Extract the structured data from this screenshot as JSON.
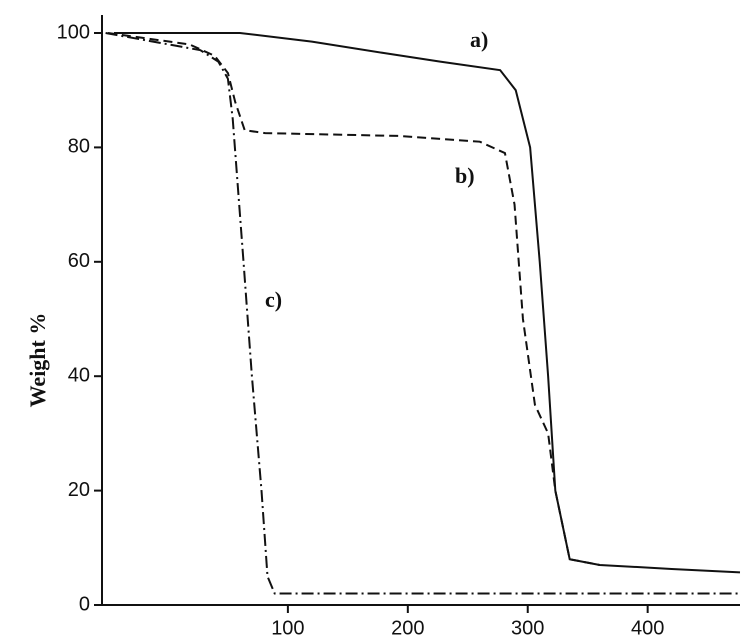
{
  "chart_data": {
    "type": "line",
    "ylabel": "Weight %",
    "xlim": [
      -55,
      477
    ],
    "ylim": [
      0,
      100
    ],
    "xticks": [
      100,
      200,
      300,
      400
    ],
    "yticks": [
      0,
      20,
      40,
      60,
      80,
      100
    ],
    "series": [
      {
        "name": "a)",
        "color": "#111111",
        "style": "solid",
        "x": [
          -45,
          0,
          60,
          120,
          180,
          227,
          277,
          290,
          302,
          310,
          317,
          323,
          335,
          360,
          420,
          477
        ],
        "values": [
          100,
          100,
          100,
          98.5,
          96.5,
          95,
          93.5,
          90,
          80,
          60,
          40,
          20,
          8,
          7,
          6.3,
          5.7
        ]
      },
      {
        "name": "b)",
        "color": "#111111",
        "style": "dashed",
        "x": [
          -50,
          18,
          39,
          50,
          56,
          64,
          81,
          193,
          260,
          281,
          289,
          296,
          306,
          317,
          323,
          335,
          360
        ],
        "values": [
          100,
          98,
          96,
          93,
          88,
          83,
          82.5,
          82,
          81,
          79,
          70,
          50,
          35,
          30,
          20,
          8,
          7
        ]
      },
      {
        "name": "c)",
        "color": "#111111",
        "style": "dashdot",
        "x": [
          -52,
          27,
          42,
          50,
          54,
          63,
          70,
          78,
          83,
          89,
          200,
          350,
          477
        ],
        "values": [
          100,
          97,
          95,
          92,
          85,
          60,
          40,
          20,
          5,
          2,
          2,
          2,
          2
        ]
      }
    ]
  }
}
